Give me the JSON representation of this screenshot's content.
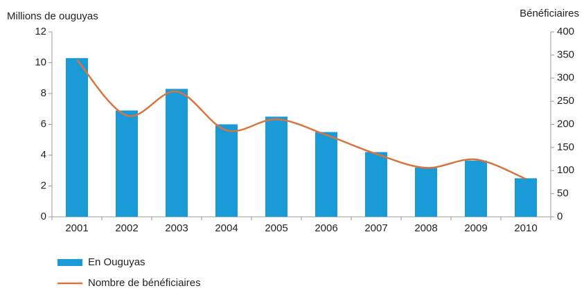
{
  "chart_data": {
    "type": "bar",
    "y_label": "Millions de ouguyas",
    "y2_label": "Bénéficiaires",
    "categories": [
      "2001",
      "2002",
      "2003",
      "2004",
      "2005",
      "2006",
      "2007",
      "2008",
      "2009",
      "2010"
    ],
    "series": [
      {
        "name": "En  Ouguyas",
        "type": "bar",
        "color": "#1a9ad6",
        "values": [
          10.3,
          6.9,
          8.3,
          6.0,
          6.5,
          5.5,
          4.2,
          3.2,
          3.65,
          2.5
        ]
      },
      {
        "name": "Nombre de bénéficiaires",
        "type": "line",
        "axis": "y2",
        "color": "#d9743f",
        "values": [
          340,
          219,
          271,
          187,
          211,
          177,
          136,
          106,
          124,
          82
        ]
      }
    ],
    "ylim": [
      0,
      12
    ],
    "yticks": [
      0,
      2,
      4,
      6,
      8,
      10,
      12
    ],
    "y2lim": [
      0,
      400
    ],
    "y2ticks": [
      0,
      50,
      100,
      150,
      200,
      250,
      300,
      350,
      400
    ],
    "legend": "bottom-left"
  }
}
